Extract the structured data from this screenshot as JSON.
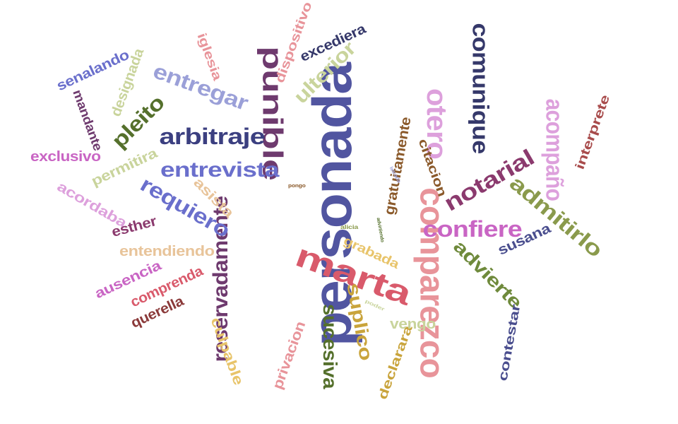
{
  "words": [
    {
      "text": "personada",
      "color": "#5155a0"
    },
    {
      "text": "comparezco",
      "color": "#e8949a"
    },
    {
      "text": "punible",
      "color": "#6e3a6e"
    },
    {
      "text": "reservadamente",
      "color": "#6e3a6e"
    },
    {
      "text": "marta",
      "color": "#d95a6b"
    },
    {
      "text": "otero",
      "color": "#dda0dc"
    },
    {
      "text": "notarial",
      "color": "#8b3a6e"
    },
    {
      "text": "comunique",
      "color": "#35386a"
    },
    {
      "text": "acompaño",
      "color": "#dda0dc"
    },
    {
      "text": "admitirlo",
      "color": "#8a9a4c"
    },
    {
      "text": "confiere",
      "color": "#c965c4"
    },
    {
      "text": "advierte",
      "color": "#6f8a3c"
    },
    {
      "text": "arbitraje",
      "color": "#3b3f80"
    },
    {
      "text": "entrevista",
      "color": "#6a6fcc"
    },
    {
      "text": "requiero",
      "color": "#6a6fcc"
    },
    {
      "text": "entregar",
      "color": "#9ba0d8"
    },
    {
      "text": "pleito",
      "color": "#55702c"
    },
    {
      "text": "ulterior",
      "color": "#c9d49c"
    },
    {
      "text": "sucesiva",
      "color": "#55702c"
    },
    {
      "text": "suplico",
      "color": "#c9a43c"
    },
    {
      "text": "gratuitamente",
      "color": "#8b5a2b"
    },
    {
      "text": "citacion",
      "color": "#8b5a2b"
    },
    {
      "text": "interprete",
      "color": "#a84b4b"
    },
    {
      "text": "contestar",
      "color": "#4a4e8e"
    },
    {
      "text": "susana",
      "color": "#4a4e8e"
    },
    {
      "text": "excediera",
      "color": "#35386a"
    },
    {
      "text": "dispositivo",
      "color": "#e8949a"
    },
    {
      "text": "iglesia",
      "color": "#e8949a"
    },
    {
      "text": "designada",
      "color": "#c9d49c"
    },
    {
      "text": "senalando",
      "color": "#6a6fcc"
    },
    {
      "text": "mandante",
      "color": "#6e3a6e"
    },
    {
      "text": "exclusivo",
      "color": "#c965c4"
    },
    {
      "text": "permitira",
      "color": "#c9d49c"
    },
    {
      "text": "acordaba",
      "color": "#dda0dc"
    },
    {
      "text": "esther",
      "color": "#8b3a6e"
    },
    {
      "text": "asista",
      "color": "#e8c49a"
    },
    {
      "text": "entendiendo",
      "color": "#e8c49a"
    },
    {
      "text": "ausencia",
      "color": "#c965c4"
    },
    {
      "text": "comprenda",
      "color": "#d95a6b"
    },
    {
      "text": "querella",
      "color": "#8b3a3a"
    },
    {
      "text": "culpable",
      "color": "#e8c46a"
    },
    {
      "text": "privacion",
      "color": "#e8949a"
    },
    {
      "text": "declarara",
      "color": "#c9a43c"
    },
    {
      "text": "vengo",
      "color": "#c9d49c"
    },
    {
      "text": "grabada",
      "color": "#e8c46a"
    },
    {
      "text": "alicia",
      "color": "#8a9a4c"
    },
    {
      "text": "advirtiendo",
      "color": "#55702c"
    },
    {
      "text": "pongo",
      "color": "#8b5a2b"
    },
    {
      "text": "letrada",
      "color": "#9ba0d8"
    },
    {
      "text": "poder",
      "color": "#c9d49c"
    }
  ]
}
